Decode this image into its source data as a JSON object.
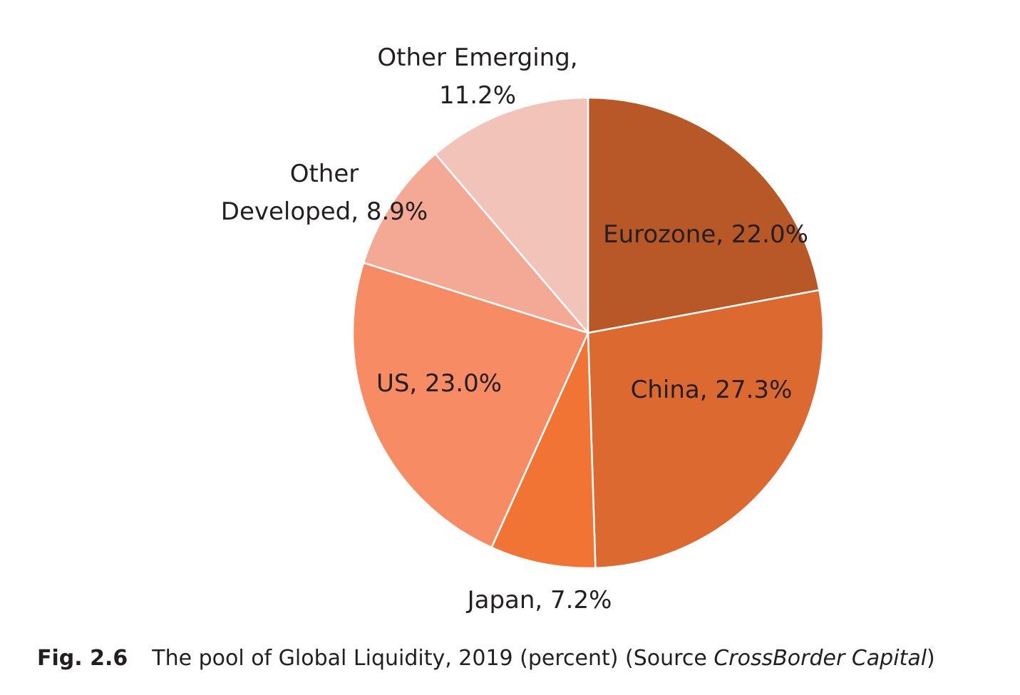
{
  "chart_data": {
    "type": "pie",
    "start_angle_deg": 0,
    "direction": "clockwise",
    "slices": [
      {
        "label": "Eurozone",
        "label_text": "Eurozone, 22.0%",
        "value": 22.0,
        "color": "#b85826"
      },
      {
        "label": "China",
        "label_text": "China, 27.3%",
        "value": 27.3,
        "color": "#dc6930"
      },
      {
        "label": "Japan",
        "label_text": "Japan, 7.2%",
        "value": 7.2,
        "color": "#f27435"
      },
      {
        "label": "US",
        "label_text": "US, 23.0%",
        "value": 23.0,
        "color": "#f68b64"
      },
      {
        "label": "Other Developed",
        "label_text": "Other Developed, 8.9%",
        "value": 8.9,
        "color": "#f4a994"
      },
      {
        "label": "Other Emerging",
        "label_text": "Other Emerging, 11.2%",
        "value": 11.2,
        "color": "#f2c3b8"
      }
    ]
  },
  "caption": {
    "fig_number": "Fig. 2.6",
    "text": "The pool of Global Liquidity, 2019 (percent) (Source ",
    "source": "CrossBorder Capital",
    "close": ")"
  }
}
